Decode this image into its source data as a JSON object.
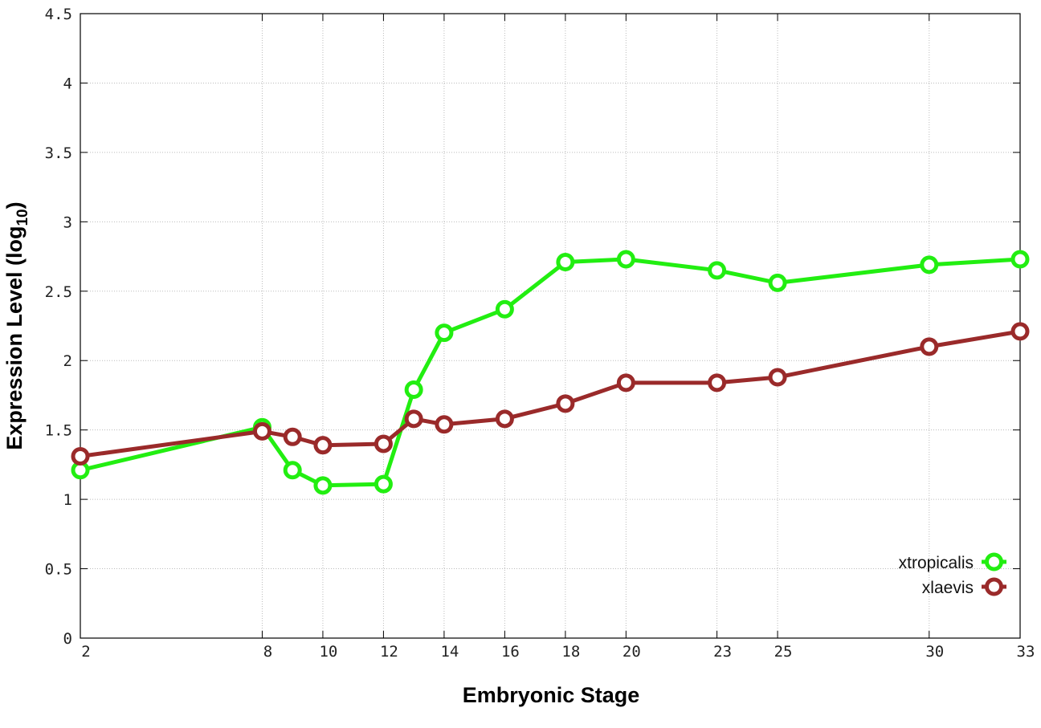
{
  "chart_data": {
    "type": "line",
    "xlabel": "Embryonic Stage",
    "ylabel_main": "Expression Level (log",
    "ylabel_sub": "10",
    "ylabel_close": ")",
    "x_tick_labels": [
      "2",
      "8",
      "10",
      "12",
      "14",
      "16",
      "18",
      "20",
      "23",
      "25",
      "30",
      "33"
    ],
    "x_tick_positions": [
      2,
      8,
      10,
      12,
      14,
      16,
      18,
      20,
      23,
      25,
      30,
      33
    ],
    "xlim": [
      2,
      33
    ],
    "ylim": [
      0,
      4.5
    ],
    "y_tick_values": [
      0,
      0.5,
      1,
      1.5,
      2,
      2.5,
      3,
      3.5,
      4,
      4.5
    ],
    "y_tick_labels": [
      "0",
      "0.5",
      "1",
      "1.5",
      "2",
      "2.5",
      "3",
      "3.5",
      "4",
      "4.5"
    ],
    "grid": true,
    "legend_position": "bottom-right",
    "series": [
      {
        "name": "xtropicalis",
        "color": "#22ee11",
        "x": [
          2,
          8,
          9,
          10,
          12,
          13,
          14,
          16,
          18,
          20,
          23,
          25,
          30,
          33
        ],
        "y": [
          1.21,
          1.52,
          1.21,
          1.1,
          1.11,
          1.79,
          2.2,
          2.37,
          2.71,
          2.73,
          2.65,
          2.56,
          2.69,
          2.73
        ]
      },
      {
        "name": "xlaevis",
        "color": "#9a2a2a",
        "x": [
          2,
          8,
          9,
          10,
          12,
          13,
          14,
          16,
          18,
          20,
          23,
          25,
          30,
          33
        ],
        "y": [
          1.31,
          1.49,
          1.45,
          1.39,
          1.4,
          1.58,
          1.54,
          1.58,
          1.69,
          1.84,
          1.84,
          1.88,
          2.1,
          2.21
        ]
      }
    ]
  }
}
